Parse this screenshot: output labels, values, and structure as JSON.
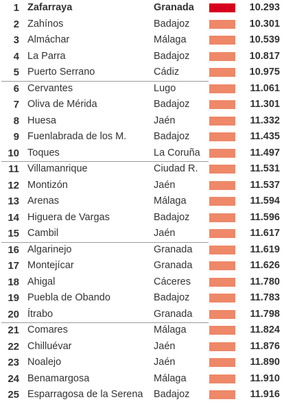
{
  "chart_data": {
    "type": "table",
    "columns": [
      "rank",
      "municipality",
      "province",
      "value"
    ],
    "highlight_color": "#d7001c",
    "bar_color": "#ee8868",
    "rows": [
      {
        "rank": "1",
        "name": "Zafarraya",
        "province": "Granada",
        "value": "10.293"
      },
      {
        "rank": "2",
        "name": "Zahínos",
        "province": "Badajoz",
        "value": "10.301"
      },
      {
        "rank": "3",
        "name": "Almáchar",
        "province": "Málaga",
        "value": "10.539"
      },
      {
        "rank": "4",
        "name": "La Parra",
        "province": "Badajoz",
        "value": "10.817"
      },
      {
        "rank": "5",
        "name": "Puerto Serrano",
        "province": "Cádiz",
        "value": "10.975"
      },
      {
        "rank": "6",
        "name": "Cervantes",
        "province": "Lugo",
        "value": "11.061"
      },
      {
        "rank": "7",
        "name": "Oliva de Mérida",
        "province": "Badajoz",
        "value": "11.301"
      },
      {
        "rank": "8",
        "name": "Huesa",
        "province": "Jaén",
        "value": "11.332"
      },
      {
        "rank": "9",
        "name": "Fuenlabrada de los M.",
        "province": "Badajoz",
        "value": "11.435"
      },
      {
        "rank": "10",
        "name": "Toques",
        "province": "La Coruña",
        "value": "11.497"
      },
      {
        "rank": "11",
        "name": "Villamanrique",
        "province": "Ciudad R.",
        "value": "11.531"
      },
      {
        "rank": "12",
        "name": "Montizón",
        "province": "Jaén",
        "value": "11.537"
      },
      {
        "rank": "13",
        "name": "Arenas",
        "province": "Málaga",
        "value": "11.594"
      },
      {
        "rank": "14",
        "name": "Higuera de Vargas",
        "province": "Badajoz",
        "value": "11.596"
      },
      {
        "rank": "15",
        "name": "Cambil",
        "province": "Jaén",
        "value": "11.617"
      },
      {
        "rank": "16",
        "name": "Algarinejo",
        "province": "Granada",
        "value": "11.619"
      },
      {
        "rank": "17",
        "name": "Montejícar",
        "province": "Granada",
        "value": "11.626"
      },
      {
        "rank": "18",
        "name": "Ahigal",
        "province": "Cáceres",
        "value": "11.780"
      },
      {
        "rank": "19",
        "name": "Puebla de Obando",
        "province": "Badajoz",
        "value": "11.783"
      },
      {
        "rank": "20",
        "name": "Ítrabo",
        "province": "Granada",
        "value": "11.798"
      },
      {
        "rank": "21",
        "name": "Comares",
        "province": "Málaga",
        "value": "11.824"
      },
      {
        "rank": "22",
        "name": "Chilluévar",
        "province": "Jaén",
        "value": "11.876"
      },
      {
        "rank": "23",
        "name": "Noalejo",
        "province": "Jaén",
        "value": "11.890"
      },
      {
        "rank": "24",
        "name": "Benamargosa",
        "province": "Málaga",
        "value": "11.910"
      },
      {
        "rank": "25",
        "name": "Esparragosa de la Serena",
        "province": "Badajoz",
        "value": "11.916"
      }
    ]
  }
}
